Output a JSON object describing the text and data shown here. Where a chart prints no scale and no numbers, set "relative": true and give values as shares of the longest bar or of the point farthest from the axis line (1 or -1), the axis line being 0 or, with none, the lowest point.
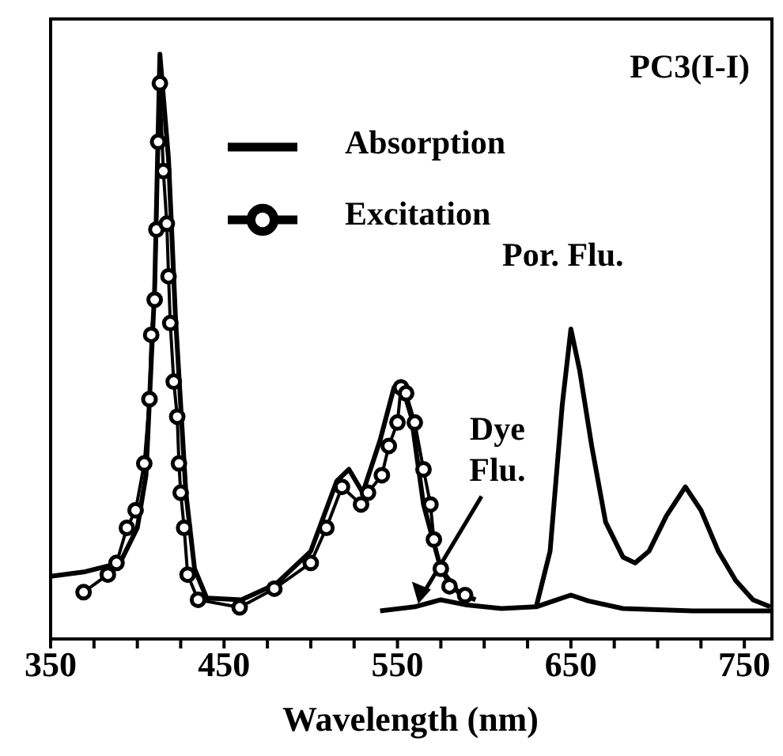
{
  "chart_data": {
    "type": "line",
    "title": "PC3(I-I)",
    "xlabel": "Wavelength (nm)",
    "relative": true,
    "legend": "top",
    "xlim": [
      350,
      765
    ],
    "xticks": [
      350,
      {
        "value": 375,
        "label": null
      },
      {
        "value": 400,
        "label": null
      },
      {
        "value": 425,
        "label": null
      },
      450,
      {
        "value": 475,
        "label": null
      },
      {
        "value": 500,
        "label": null
      },
      {
        "value": 525,
        "label": null
      },
      550,
      {
        "value": 575,
        "label": null
      },
      {
        "value": 600,
        "label": null
      },
      {
        "value": 625,
        "label": null
      },
      650,
      {
        "value": 675,
        "label": null
      },
      {
        "value": 700,
        "label": null
      },
      {
        "value": 725,
        "label": null
      },
      750
    ],
    "annotations": [
      {
        "text": "Dye Flu.",
        "x": 562,
        "y": 0.06
      },
      {
        "text": "Por. Flu.",
        "x": 650,
        "y": 0.53
      }
    ],
    "series": [
      {
        "name": "Absorption",
        "color": "#000000",
        "x": [
          350,
          370,
          390,
          400,
          405,
          410,
          413,
          418,
          422,
          428,
          433,
          440,
          460,
          480,
          500,
          515,
          522,
          530,
          540,
          548,
          552,
          558,
          565,
          575,
          585,
          595
        ],
        "values": [
          0.107,
          0.115,
          0.13,
          0.19,
          0.28,
          0.6,
          1.0,
          0.82,
          0.55,
          0.25,
          0.12,
          0.07,
          0.067,
          0.094,
          0.15,
          0.27,
          0.29,
          0.25,
          0.34,
          0.43,
          0.44,
          0.38,
          0.23,
          0.12,
          0.08,
          0.067
        ]
      },
      {
        "name": "Excitation",
        "color": "#000000",
        "marker": "circle",
        "x": [
          369,
          383,
          388,
          394,
          399,
          404,
          407,
          408,
          410,
          411,
          412,
          413,
          415,
          417,
          418,
          419,
          421,
          423,
          424,
          425,
          427,
          429,
          435,
          459,
          479,
          500,
          509,
          518,
          529,
          533,
          541,
          545,
          550,
          552,
          555,
          560,
          565,
          569,
          571,
          575,
          580,
          589
        ],
        "values": [
          0.08,
          0.11,
          0.13,
          0.19,
          0.22,
          0.3,
          0.41,
          0.52,
          0.58,
          0.7,
          0.85,
          0.95,
          0.8,
          0.71,
          0.62,
          0.54,
          0.44,
          0.38,
          0.3,
          0.25,
          0.19,
          0.11,
          0.067,
          0.054,
          0.086,
          0.13,
          0.19,
          0.26,
          0.23,
          0.25,
          0.28,
          0.33,
          0.37,
          0.43,
          0.42,
          0.37,
          0.29,
          0.23,
          0.17,
          0.12,
          0.09,
          0.075
        ]
      },
      {
        "color": "#000000",
        "x": [
          540,
          560,
          575,
          590,
          610,
          630,
          640,
          650,
          660,
          680,
          700,
          720,
          740,
          765
        ],
        "values": [
          0.048,
          0.055,
          0.067,
          0.058,
          0.052,
          0.055,
          0.065,
          0.075,
          0.065,
          0.052,
          0.05,
          0.048,
          0.048,
          0.048
        ]
      },
      {
        "color": "#000000",
        "x": [
          630,
          638,
          645,
          650,
          655,
          662,
          670,
          680,
          687,
          695,
          705,
          716,
          725,
          735,
          745,
          755,
          765
        ],
        "values": [
          0.055,
          0.15,
          0.4,
          0.53,
          0.46,
          0.33,
          0.2,
          0.14,
          0.13,
          0.15,
          0.21,
          0.26,
          0.22,
          0.15,
          0.1,
          0.067,
          0.055
        ]
      }
    ]
  }
}
